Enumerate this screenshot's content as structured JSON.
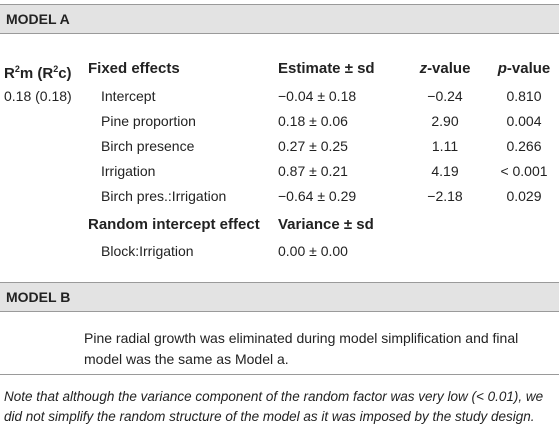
{
  "model_a": {
    "heading": "MODEL A",
    "col_r2": {
      "pre": "R",
      "sup1": "2",
      "mid": "m (R",
      "sup2": "2",
      "post": "c)"
    },
    "col_fixed": "Fixed effects",
    "col_estimate": "Estimate ± sd",
    "col_z": {
      "italic": "z",
      "rest": "-value"
    },
    "col_p": {
      "italic": "p",
      "rest": "-value"
    },
    "r2_value": "0.18 (0.18)",
    "rows": [
      {
        "name": "Intercept",
        "estimate": "−0.04 ± 0.18",
        "z": "−0.24",
        "p": "0.810"
      },
      {
        "name": "Pine proportion",
        "estimate": "0.18 ± 0.06",
        "z": "2.90",
        "p": "0.004"
      },
      {
        "name": "Birch presence",
        "estimate": "0.27 ± 0.25",
        "z": "1.11",
        "p": "0.266"
      },
      {
        "name": "Irrigation",
        "estimate": "0.87 ± 0.21",
        "z": "4.19",
        "p": "< 0.001"
      },
      {
        "name": "Birch pres.:Irrigation",
        "estimate": "−0.64 ± 0.29",
        "z": "−2.18",
        "p": "0.029"
      }
    ],
    "random_header": "Random intercept effect",
    "variance_header": "Variance ± sd",
    "random_row": {
      "name": "Block:Irrigation",
      "variance": "0.00 ± 0.00"
    }
  },
  "model_b": {
    "heading": "MODEL B",
    "text": "Pine radial growth was eliminated during model simplification and final model was the same as Model a."
  },
  "note": {
    "line1": "Note that although the variance component of the random factor was very low (< 0.01), we",
    "line2": "did not simplify the random structure of the model as it was imposed by the study design."
  }
}
